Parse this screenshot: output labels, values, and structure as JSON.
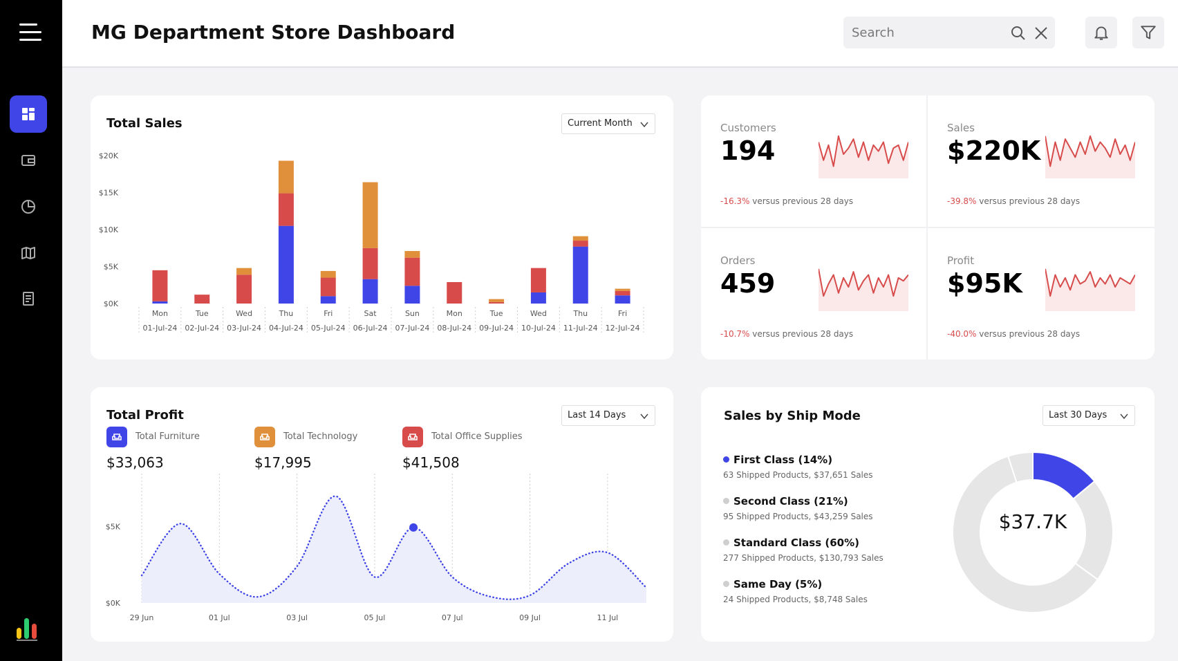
{
  "header": {
    "title": "MG Department Store Dashboard",
    "search_placeholder": "Search"
  },
  "sidebar": {
    "items": [
      {
        "icon": "dashboard-icon",
        "active": true
      },
      {
        "icon": "wallet-icon",
        "active": false
      },
      {
        "icon": "pie-chart-icon",
        "active": false
      },
      {
        "icon": "map-icon",
        "active": false
      },
      {
        "icon": "report-icon",
        "active": false
      }
    ],
    "colors": {
      "active": "#4045e8"
    }
  },
  "total_sales": {
    "title": "Total Sales",
    "filter": "Current Month"
  },
  "kpis": [
    {
      "label": "Customers",
      "value": "194",
      "delta": "-16.3%",
      "suffix": " versus previous 28 days"
    },
    {
      "label": "Sales",
      "value": "$220K",
      "delta": "-39.8%",
      "suffix": " versus previous 28 days"
    },
    {
      "label": "Orders",
      "value": "459",
      "delta": "-10.7%",
      "suffix": " versus previous 28 days"
    },
    {
      "label": "Profit",
      "value": "$95K",
      "delta": "-40.0%",
      "suffix": " versus previous 28 days"
    }
  ],
  "total_profit": {
    "title": "Total Profit",
    "filter": "Last 14 Days",
    "legend": [
      {
        "label": "Total Furniture",
        "value": "$33,063",
        "color": "#4045e8",
        "icon": "armchair-icon"
      },
      {
        "label": "Total Technology",
        "value": "$17,995",
        "color": "#e0903a",
        "icon": "armchair-icon"
      },
      {
        "label": "Total Office Supplies",
        "value": "$41,508",
        "color": "#d84b4b",
        "icon": "armchair-icon"
      }
    ]
  },
  "ship_mode": {
    "title": "Sales by Ship Mode",
    "filter": "Last 30 Days",
    "center_value": "$37.7K",
    "rows": [
      {
        "name": "First Class (14%)",
        "detail": "63 Shipped Products, $37,651 Sales",
        "color": "#4045e8"
      },
      {
        "name": "Second Class (21%)",
        "detail": "95 Shipped Products, $43,259 Sales",
        "color": "#cfcfcf"
      },
      {
        "name": "Standard Class (60%)",
        "detail": "277 Shipped Products, $130,793 Sales",
        "color": "#cfcfcf"
      },
      {
        "name": "Same Day (5%)",
        "detail": "24 Shipped Products, $8,748 Sales",
        "color": "#cfcfcf"
      }
    ]
  },
  "chart_data": [
    {
      "type": "bar",
      "title": "Total Sales",
      "stacked": true,
      "categories": [
        "Mon",
        "Tue",
        "Wed",
        "Thu",
        "Fri",
        "Sat",
        "Sun",
        "Mon",
        "Tue",
        "Wed",
        "Thu",
        "Fri"
      ],
      "dates": [
        "01-Jul-24",
        "02-Jul-24",
        "03-Jul-24",
        "04-Jul-24",
        "05-Jul-24",
        "06-Jul-24",
        "07-Jul-24",
        "08-Jul-24",
        "09-Jul-24",
        "10-Jul-24",
        "11-Jul-24",
        "12-Jul-24"
      ],
      "yticks": [
        "$0K",
        "$5K",
        "$10K",
        "$15K",
        "$20K"
      ],
      "ylim": [
        0,
        20000
      ],
      "series": [
        {
          "color": "#4045e8",
          "values": [
            300,
            0,
            0,
            10500,
            1000,
            3300,
            2400,
            0,
            0,
            1500,
            7700,
            1100
          ]
        },
        {
          "color": "#d84b4b",
          "values": [
            4200,
            1200,
            3900,
            4400,
            2500,
            4200,
            3800,
            2900,
            200,
            3300,
            800,
            600
          ]
        },
        {
          "color": "#e0903a",
          "values": [
            0,
            0,
            900,
            4400,
            900,
            8900,
            900,
            0,
            400,
            0,
            600,
            300
          ]
        }
      ]
    },
    {
      "type": "line",
      "x": [
        "29 Jun",
        "30 Jun",
        "01 Jul",
        "02 Jul",
        "03 Jul",
        "04 Jul",
        "05 Jul",
        "06 Jul",
        "07 Jul",
        "08 Jul",
        "09 Jul",
        "10 Jul",
        "11 Jul",
        "12 Jul"
      ],
      "xticks": [
        "29 Jun",
        "01 Jul",
        "03 Jul",
        "05 Jul",
        "07 Jul",
        "09 Jul",
        "11 Jul"
      ],
      "yticks": [
        "$0K",
        "$5K"
      ],
      "ylim": [
        0,
        7800
      ],
      "values": [
        1800,
        5200,
        1900,
        400,
        2400,
        7000,
        1700,
        4950,
        1700,
        400,
        500,
        2600,
        3300,
        1000
      ],
      "highlight_index": 7,
      "color": "#4045e8"
    },
    {
      "type": "pie",
      "donut": true,
      "title": "Sales by Ship Mode",
      "labels": [
        "First Class",
        "Second Class",
        "Standard Class",
        "Same Day"
      ],
      "values": [
        14,
        21,
        60,
        5
      ],
      "highlight": "First Class",
      "colors": [
        "#4045e8",
        "#e6e6e6",
        "#e6e6e6",
        "#e6e6e6"
      ]
    }
  ],
  "kpi_sparks": [
    [
      60,
      30,
      55,
      20,
      70,
      40,
      50,
      65,
      35,
      60,
      30,
      55,
      45,
      60,
      25,
      50,
      55,
      30,
      60
    ],
    [
      70,
      20,
      60,
      30,
      65,
      50,
      35,
      60,
      40,
      70,
      45,
      60,
      50,
      35,
      65,
      40,
      55,
      30,
      60
    ],
    [
      70,
      25,
      45,
      60,
      30,
      55,
      40,
      65,
      35,
      50,
      60,
      30,
      55,
      40,
      60,
      25,
      55,
      50,
      60
    ],
    [
      70,
      25,
      60,
      40,
      55,
      35,
      60,
      45,
      50,
      65,
      40,
      55,
      45,
      60,
      40,
      55,
      50,
      45,
      60
    ]
  ]
}
